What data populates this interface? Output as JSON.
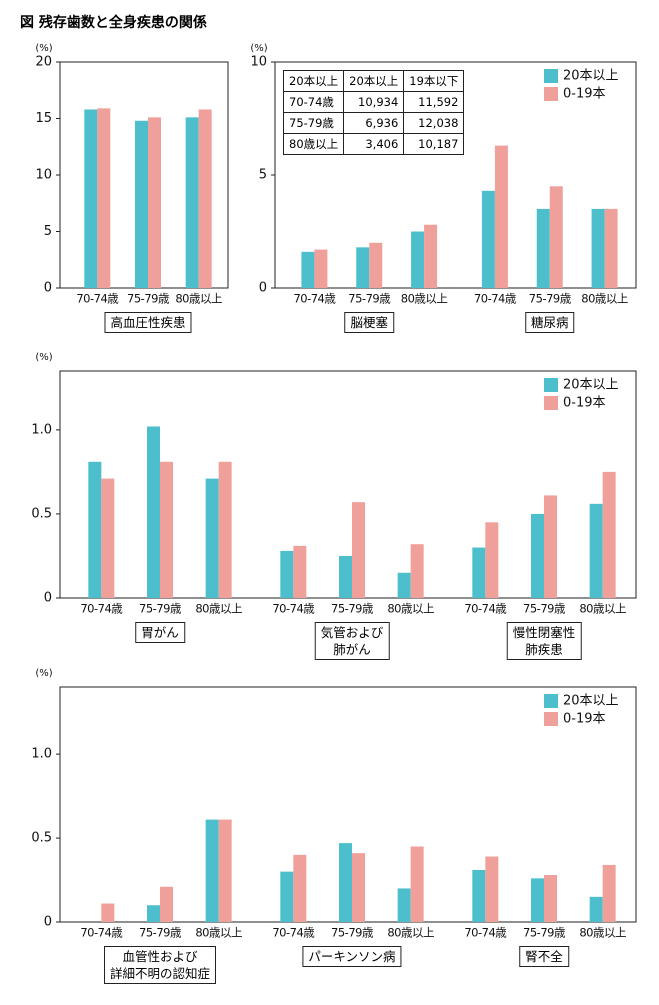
{
  "title": "図 残存歯数と全身疾患の関係",
  "chart_data": [
    {
      "type": "bar",
      "y_label": "(%)",
      "categories": [
        "70-74歳",
        "75-79歳",
        "80歳以上"
      ],
      "groups": [
        "高血圧性疾患"
      ],
      "series": [
        {
          "color": "#4dbfcc",
          "values": [
            15.8,
            14.8,
            15.1
          ]
        },
        {
          "color": "#f0a09a",
          "values": [
            15.9,
            15.1,
            15.8
          ]
        }
      ],
      "ylim": [
        0,
        20
      ],
      "yticks": [
        0,
        5,
        10,
        15,
        20
      ]
    },
    {
      "type": "bar",
      "y_label": "(%)",
      "categories": [
        "70-74歳",
        "75-79歳",
        "80歳以上",
        "70-74歳",
        "75-79歳",
        "80歳以上"
      ],
      "groups": [
        "脳梗塞",
        "糖尿病"
      ],
      "series": [
        {
          "name": "20本以上",
          "color": "#4dbfcc",
          "values": [
            1.6,
            1.8,
            2.5,
            4.3,
            3.5,
            3.5
          ]
        },
        {
          "name": "0-19本",
          "color": "#f0a09a",
          "values": [
            1.7,
            2.0,
            2.8,
            6.3,
            4.5,
            3.5
          ]
        }
      ],
      "ylim": [
        0,
        10
      ],
      "yticks": [
        0,
        5,
        10
      ],
      "legend": "upper right",
      "table": {
        "header": [
          "20本以上",
          "20本以上",
          "19本以下"
        ],
        "rows": [
          [
            "70-74歳",
            "10,934",
            "11,592"
          ],
          [
            "75-79歳",
            "6,936",
            "12,038"
          ],
          [
            "80歳以上",
            "3,406",
            "10,187"
          ]
        ]
      }
    },
    {
      "type": "bar",
      "y_label": "(%)",
      "categories": [
        "70-74歳",
        "75-79歳",
        "80歳以上",
        "70-74歳",
        "75-79歳",
        "80歳以上",
        "70-74歳",
        "75-79歳",
        "80歳以上"
      ],
      "groups": [
        "胃がん",
        "気管および\n肺がん",
        "慢性閉塞性\n肺疾患"
      ],
      "series": [
        {
          "name": "20本以上",
          "color": "#4dbfcc",
          "values": [
            0.81,
            1.02,
            0.71,
            0.28,
            0.25,
            0.15,
            0.3,
            0.5,
            0.56
          ]
        },
        {
          "name": "0-19本",
          "color": "#f0a09a",
          "values": [
            0.71,
            0.81,
            0.81,
            0.31,
            0.57,
            0.32,
            0.45,
            0.61,
            0.75
          ]
        }
      ],
      "ylim": [
        0,
        1.35
      ],
      "yticks": [
        0,
        0.5,
        {
          "value": 1,
          "label": "1.0"
        }
      ],
      "legend": "upper right"
    },
    {
      "type": "bar",
      "y_label": "(%)",
      "categories": [
        "70-74歳",
        "75-79歳",
        "80歳以上",
        "70-74歳",
        "75-79歳",
        "80歳以上",
        "70-74歳",
        "75-79歳",
        "80歳以上"
      ],
      "groups": [
        "血管性および\n詳細不明の認知症",
        "パーキンソン病",
        "腎不全"
      ],
      "series": [
        {
          "name": "20本以上",
          "color": "#4dbfcc",
          "values": [
            0,
            0.1,
            0.61,
            0.3,
            0.47,
            0.2,
            0.31,
            0.26,
            0.15
          ]
        },
        {
          "name": "0-19本",
          "color": "#f0a09a",
          "values": [
            0.11,
            0.21,
            0.61,
            0.4,
            0.41,
            0.45,
            0.39,
            0.28,
            0.34
          ]
        }
      ],
      "ylim": [
        0,
        1.4
      ],
      "yticks": [
        0,
        0.5,
        {
          "value": 1,
          "label": "1.0"
        }
      ],
      "legend": "upper right"
    }
  ]
}
